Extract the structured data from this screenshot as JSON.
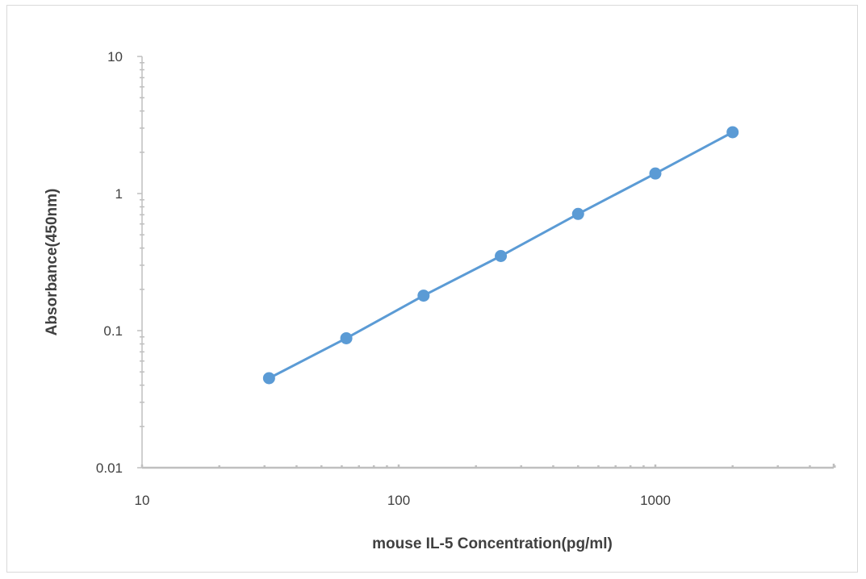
{
  "chart_data": {
    "type": "line",
    "title": "",
    "xlabel": "mouse IL-5 Concentration(pg/ml)",
    "ylabel": "Absorbance(450nm)",
    "x_scale": "log",
    "y_scale": "log",
    "xlim": [
      10,
      5000
    ],
    "ylim": [
      0.01,
      10
    ],
    "x_tick_labels": [
      "10",
      "100",
      "1000"
    ],
    "y_tick_labels": [
      "0.01",
      "0.1",
      "1",
      "10"
    ],
    "grid": false,
    "legend": "none",
    "series": [
      {
        "x": [
          31.25,
          62.5,
          125,
          250,
          500,
          1000,
          2000
        ],
        "y": [
          0.045,
          0.088,
          0.18,
          0.35,
          0.71,
          1.4,
          2.8
        ],
        "color": "#5b9bd5",
        "marker": "circle"
      }
    ]
  }
}
